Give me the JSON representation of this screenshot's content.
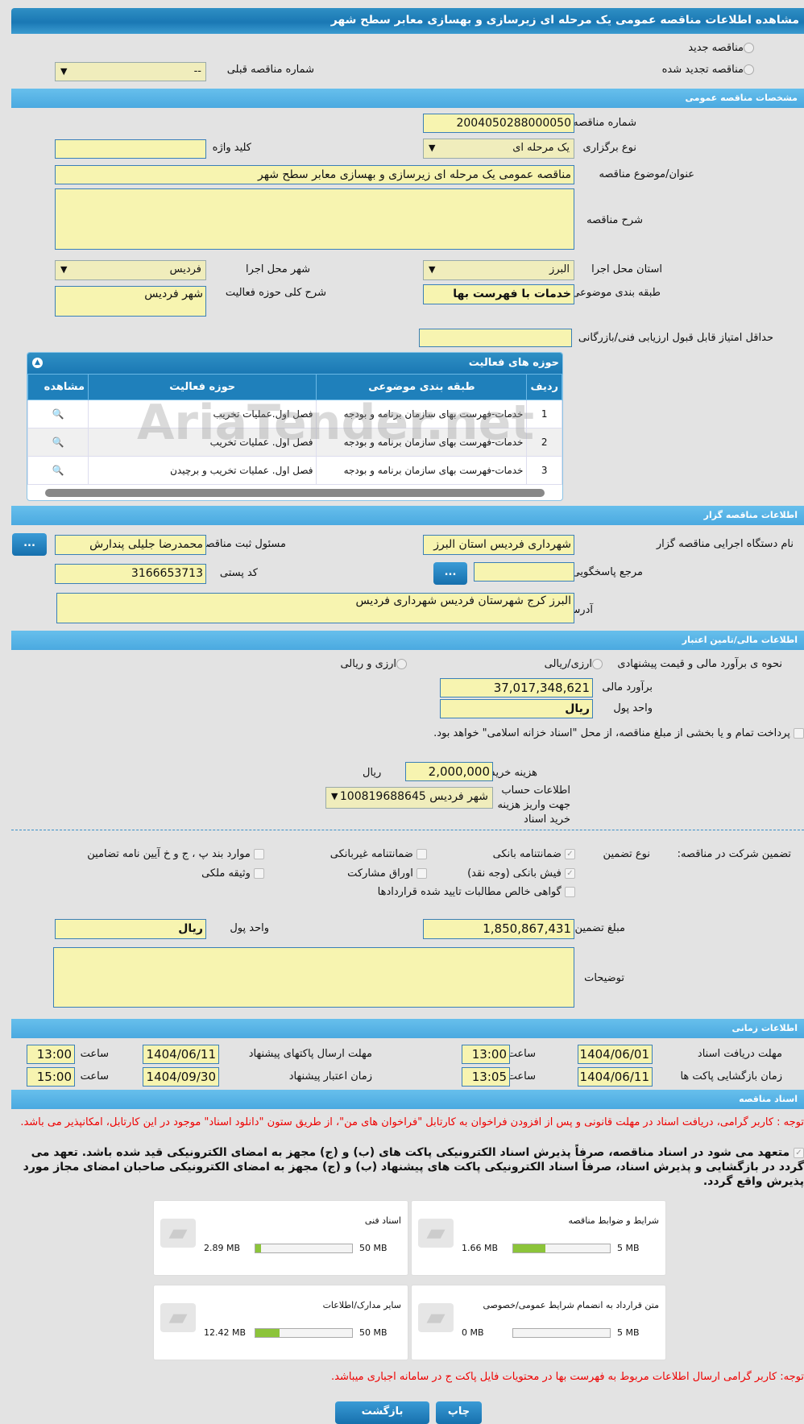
{
  "header": {
    "title": "مشاهده اطلاعات مناقصه عمومی یک مرحله ای زیرسازی و بهسازی معابر سطح شهر"
  },
  "tender_type": {
    "new": "مناقصه جدید",
    "renewed": "مناقصه تجدید شده",
    "prev_label": "شماره مناقصه قبلی",
    "prev_value": "--"
  },
  "general": {
    "section": "مشخصات مناقصه عمومی",
    "number_label": "شماره مناقصه",
    "number": "2004050288000050",
    "type_label": "نوع برگزاری",
    "type": "یک مرحله ای",
    "keyword_label": "کلید واژه",
    "keyword": "",
    "title_label": "عنوان/موضوع مناقصه",
    "title": "مناقصه عمومی یک مرحله ای زیرسازی و بهسازی معابر سطح شهر",
    "desc_label": "شرح مناقصه",
    "desc": "",
    "province_label": "استان محل اجرا",
    "province": "البرز",
    "city_label": "شهر محل اجرا",
    "city": "فردیس",
    "category_label": "طبقه بندی موضوعی",
    "category": "خدمات با فهرست بها",
    "scope_label": "شرح کلی حوزه فعالیت",
    "scope": "شهر فردیس",
    "min_score_label": "حداقل امتیاز قابل قبول ارزیابی فنی/بازرگانی",
    "min_score": ""
  },
  "activities": {
    "title": "حوزه های فعالیت",
    "columns": [
      "ردیف",
      "طبقه بندی موضوعی",
      "حوزه فعالیت",
      "مشاهده"
    ],
    "rows": [
      {
        "n": "1",
        "cat": "خدمات-فهرست بهای سازمان برنامه و بودجه",
        "act": "فصل اول.عملیات تخریب"
      },
      {
        "n": "2",
        "cat": "خدمات-فهرست بهای سازمان برنامه و بودجه",
        "act": "فصل اول. عملیات تخریب"
      },
      {
        "n": "3",
        "cat": "خدمات-فهرست بهای سازمان برنامه و بودجه",
        "act": "فصل اول. عملیات تخریب و برچیدن"
      }
    ]
  },
  "organizer": {
    "section": "اطلاعات مناقصه گزار",
    "org_label": "نام دستگاه اجرایی مناقصه گزار",
    "org": "شهرداری فردیس استان البرز",
    "resp_label": "مسئول ثبت مناقصه",
    "resp": "محمدرضا جلیلی پندارش",
    "more": "...",
    "ref_label": "مرجع پاسخگویی",
    "ref": "",
    "postal_label": "کد پستی",
    "postal": "3166653713",
    "address_label": "آدرس",
    "address": "البرز کرج شهرستان فردیس شهرداری فردیس"
  },
  "finance": {
    "section": "اطلاعات مالی/تامین اعتبار",
    "method_label": "نحوه ی برآورد مالی و قیمت پیشنهادی",
    "opt1": "ارزی/ریالی",
    "opt2": "ارزی و ریالی",
    "estimate_label": "برآورد مالی",
    "estimate": "37,017,348,621",
    "unit_label": "واحد پول",
    "unit": "ریال",
    "treasury": "پرداخت تمام و یا بخشی از مبلغ مناقصه، از محل \"اسناد خزانه اسلامی\" خواهد بود.",
    "doc_cost_label": "هزینه خرید اسناد",
    "doc_cost": "2,000,000",
    "doc_cost_unit": "ریال",
    "account_label": "اطلاعات حساب جهت واریز هزینه خرید اسناد",
    "account": "شهر فردیس 100819688645"
  },
  "guarantee": {
    "label": "تضمین شرکت در مناقصه:",
    "type_label": "نوع تضمین",
    "options": [
      {
        "label": "ضمانتنامه بانکی",
        "checked": true
      },
      {
        "label": "ضمانتنامه غیربانکی",
        "checked": false
      },
      {
        "label": "موارد بند پ ، ج و خ آیین نامه تضامین",
        "checked": false
      },
      {
        "label": "فیش بانکی (وجه نقد)",
        "checked": true
      },
      {
        "label": "اوراق مشارکت",
        "checked": false
      },
      {
        "label": "وثیقه ملکی",
        "checked": false
      },
      {
        "label": "گواهی خالص مطالبات تایید شده قراردادها",
        "checked": false
      }
    ],
    "amount_label": "مبلغ تضمین",
    "amount": "1,850,867,431",
    "unit_label": "واحد پول",
    "unit": "ریال",
    "notes_label": "توضیحات",
    "notes": ""
  },
  "timing": {
    "section": "اطلاعات زمانی",
    "time_label": "ساعت",
    "doc_receive_label": "مهلت دریافت اسناد",
    "doc_receive_date": "1404/06/01",
    "doc_receive_time": "13:00",
    "submit_label": "مهلت ارسال پاکتهای پیشنهاد",
    "submit_date": "1404/06/11",
    "submit_time": "13:00",
    "open_label": "زمان بازگشایی پاکت ها",
    "open_date": "1404/06/11",
    "open_time": "13:05",
    "valid_label": "زمان اعتبار پیشنهاد",
    "valid_date": "1404/09/30",
    "valid_time": "15:00"
  },
  "documents": {
    "section": "اسناد مناقصه",
    "notice": "توجه : کاربر گرامی، دریافت اسناد در مهلت قانونی و پس از افزودن فراخوان به کارتابل \"فراخوان های من\"، از طریق ستون \"دانلود اسناد\" موجود در این کارتابل، امکانپذیر می باشد.",
    "commit": "متعهد می شود در اسناد مناقصه، صرفاً پذیرش اسناد الکترونیکی پاکت های (ب) و (ج) مجهز به امضای الکترونیکی قید شده باشد. تعهد می گردد در بازگشایی و پذیرش اسناد، صرفاً اسناد الکترونیکی پاکت های پیشنهاد (ب) و (ج) مجهز به امضای الکترونیکی صاحبان امضای مجاز مورد پذیرش واقع گردد.",
    "files": [
      {
        "name": "شرایط و ضوابط مناقصه",
        "size": "1.66 MB",
        "max": "5 MB",
        "fraction": 0.33
      },
      {
        "name": "اسناد فنی",
        "size": "2.89 MB",
        "max": "50 MB",
        "fraction": 0.06
      },
      {
        "name": "متن قرارداد به انضمام شرایط عمومی/خصوصی",
        "size": "0 MB",
        "max": "5 MB",
        "fraction": 0
      },
      {
        "name": "سایر مدارک/اطلاعات",
        "size": "12.42 MB",
        "max": "50 MB",
        "fraction": 0.25
      }
    ],
    "note": "توجه: کاربر گرامی ارسال اطلاعات مربوط به فهرست بها در محتویات فایل پاکت ج در سامانه اجباری میباشد."
  },
  "actions": {
    "print": "چاپ",
    "back": "بازگشت"
  },
  "watermark": "AriaTender.net"
}
